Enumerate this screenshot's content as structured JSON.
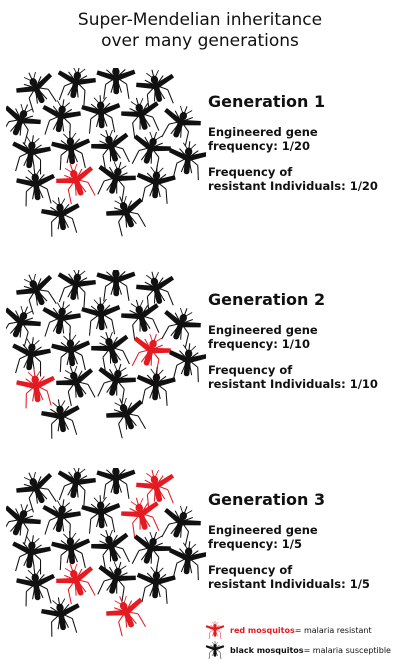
{
  "title": {
    "line1": "Super-Mendelian inheritance",
    "line2": "over many generations"
  },
  "generations": [
    {
      "heading": "Generation 1",
      "gene_line1": "Engineered gene",
      "gene_line2": "frequency: 1/20",
      "resist_line1": "Frequency of",
      "resist_line2": "resistant Individuals: 1/20",
      "red_count": 1
    },
    {
      "heading": "Generation 2",
      "gene_line1": "Engineered gene",
      "gene_line2": "frequency: 1/10",
      "resist_line1": "Frequency of",
      "resist_line2": "resistant Individuals: 1/10",
      "red_count": 2
    },
    {
      "heading": "Generation 3",
      "gene_line1": "Engineered gene",
      "gene_line2": "frequency: 1/5",
      "resist_line1": "Frequency of",
      "resist_line2": "resistant Individuals: 1/5",
      "red_count": 4
    }
  ],
  "legend": {
    "red_label": "red mosquitos",
    "red_rest": " = malaria resistant",
    "black_label": "black mosquitos",
    "black_rest": " = malaria susceptible"
  },
  "colors": {
    "resistant": "#e31b23",
    "susceptible": "#111111"
  },
  "icons": {
    "mosquito": "mosquito-icon"
  }
}
